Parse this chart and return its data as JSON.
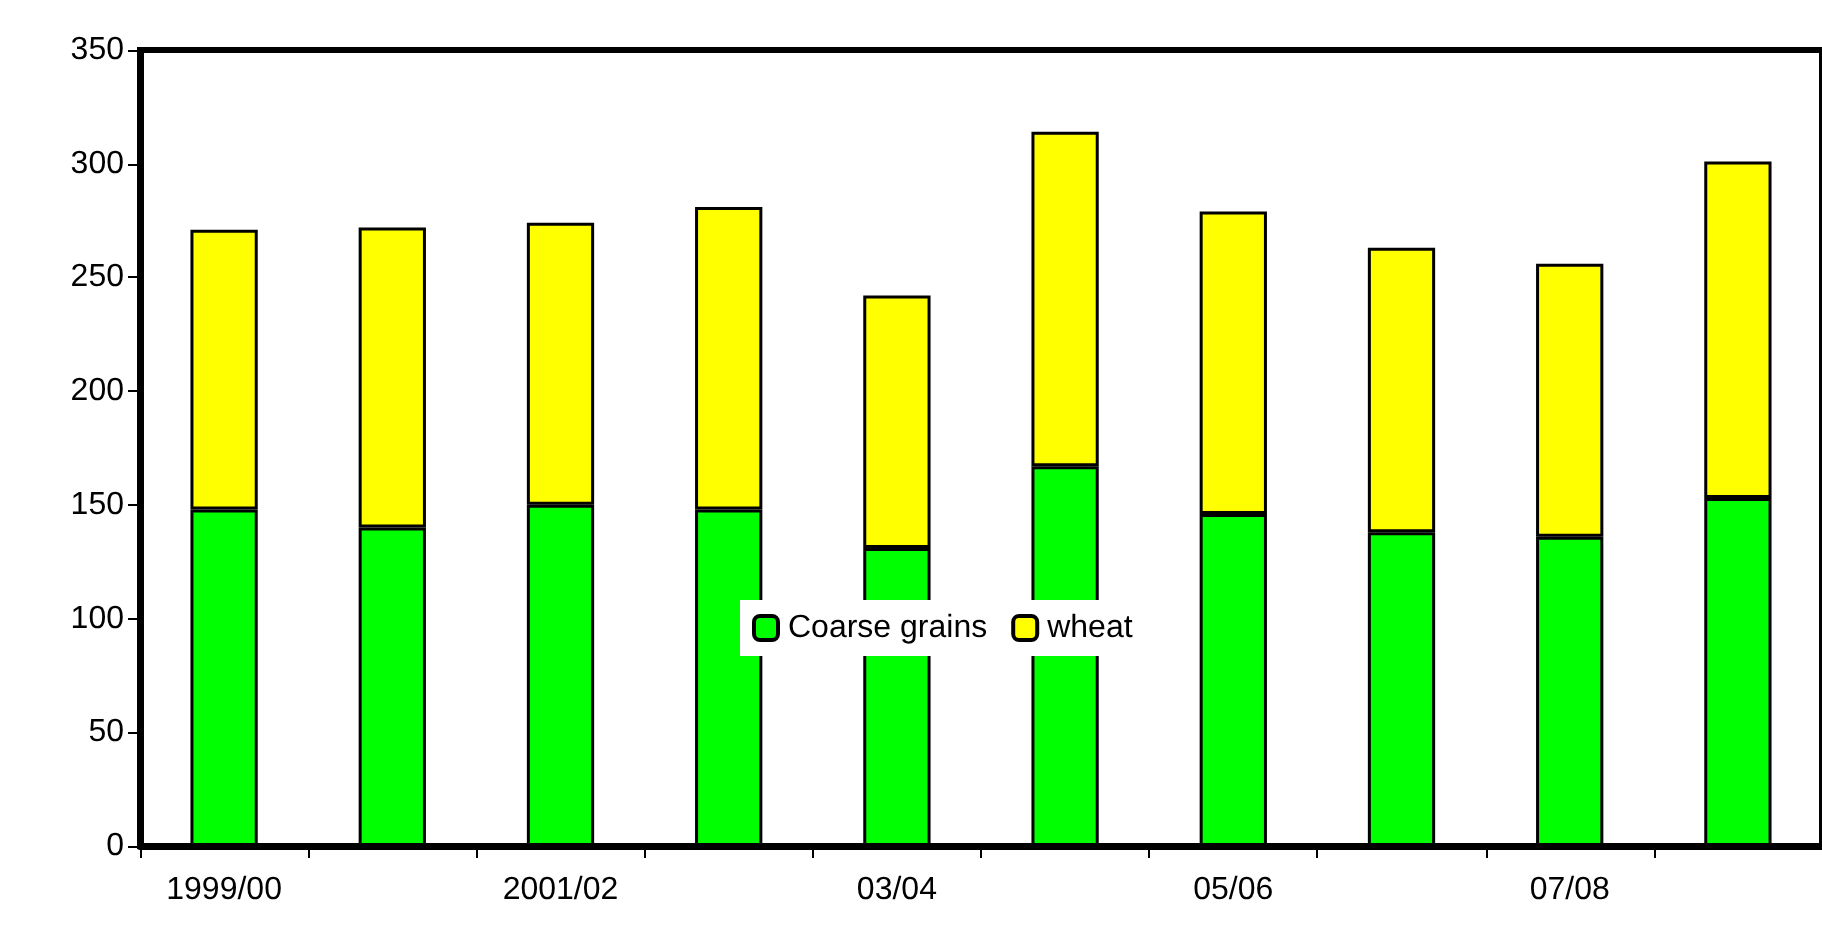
{
  "chart_data": {
    "type": "bar",
    "stacked": true,
    "categories": [
      "1999/00",
      null,
      "2001/02",
      null,
      "03/04",
      null,
      "05/06",
      null,
      "07/08",
      null
    ],
    "series": [
      {
        "name": "Coarse grains",
        "color": "#00ff00",
        "values": [
          148,
          140,
          150,
          148,
          131,
          167,
          146,
          138,
          136,
          153
        ]
      },
      {
        "name": "wheat",
        "color": "#ffff00",
        "values": [
          123,
          132,
          124,
          133,
          111,
          147,
          133,
          125,
          120,
          148
        ]
      }
    ],
    "ylim": [
      0,
      350
    ],
    "yticks": [
      0,
      50,
      100,
      150,
      200,
      250,
      300,
      350
    ],
    "grid": false,
    "legend": "center"
  }
}
